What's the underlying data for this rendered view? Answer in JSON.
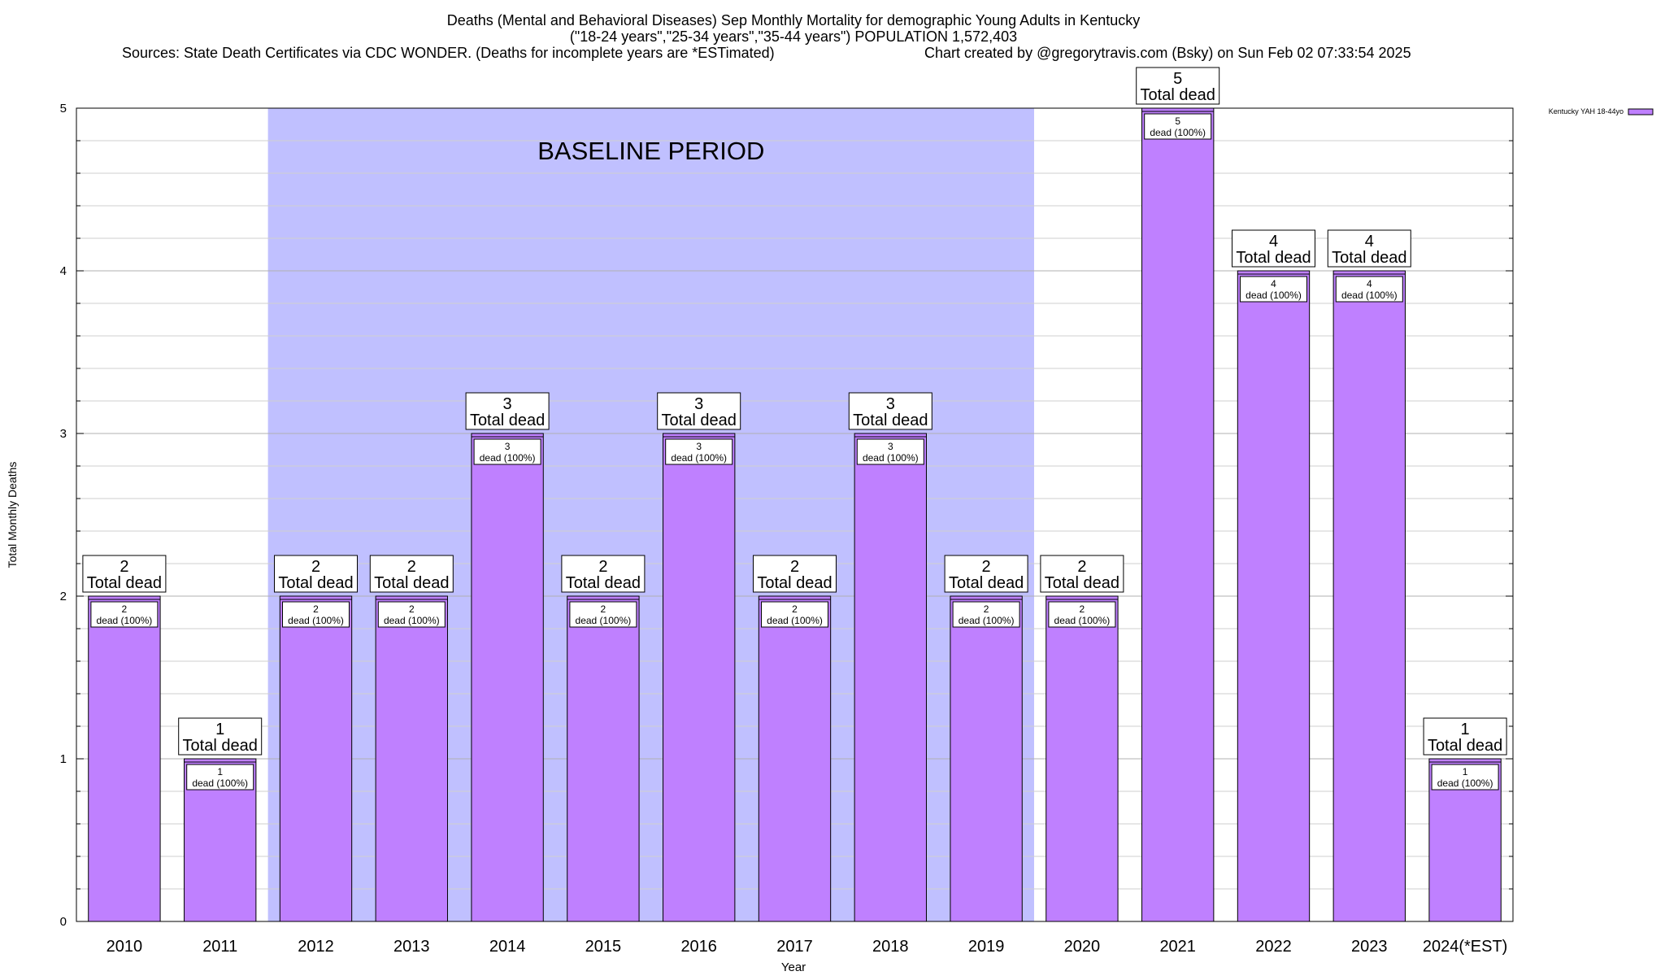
{
  "chart_data": {
    "type": "bar",
    "title_lines": [
      "Deaths (Mental and Behavioral Diseases) Sep Monthly Mortality for demographic Young Adults in Kentucky",
      "(\"18-24 years\",\"25-34 years\",\"35-44 years\") POPULATION 1,572,403"
    ],
    "source_text": "Sources: State Death Certificates via CDC WONDER. (Deaths for incomplete years are *ESTimated)",
    "credit_text": "Chart created by @gregorytravis.com (Bsky) on Sun Feb 02 07:33:54 2025",
    "xlabel": "Year",
    "ylabel": "Total Monthly Deaths",
    "ylim": [
      0,
      5
    ],
    "y_ticks": [
      "0",
      "1",
      "2",
      "3",
      "4",
      "5"
    ],
    "categories": [
      "2010",
      "2011",
      "2012",
      "2013",
      "2014",
      "2015",
      "2016",
      "2017",
      "2018",
      "2019",
      "2020",
      "2021",
      "2022",
      "2023",
      "2024(*EST)"
    ],
    "series": [
      {
        "name": "Kentucky YAH 18-44yo",
        "color": "#bf80ff",
        "values": [
          2,
          1,
          2,
          2,
          3,
          2,
          3,
          2,
          3,
          2,
          2,
          5,
          4,
          4,
          1
        ]
      }
    ],
    "total_label_text": "Total dead",
    "inner_label_text": "dead (100%)",
    "baseline": {
      "label": "BASELINE PERIOD",
      "start": "2012",
      "end": "2019",
      "color": "#c0c0ff"
    },
    "legend_position": "top-right",
    "grid": true
  }
}
